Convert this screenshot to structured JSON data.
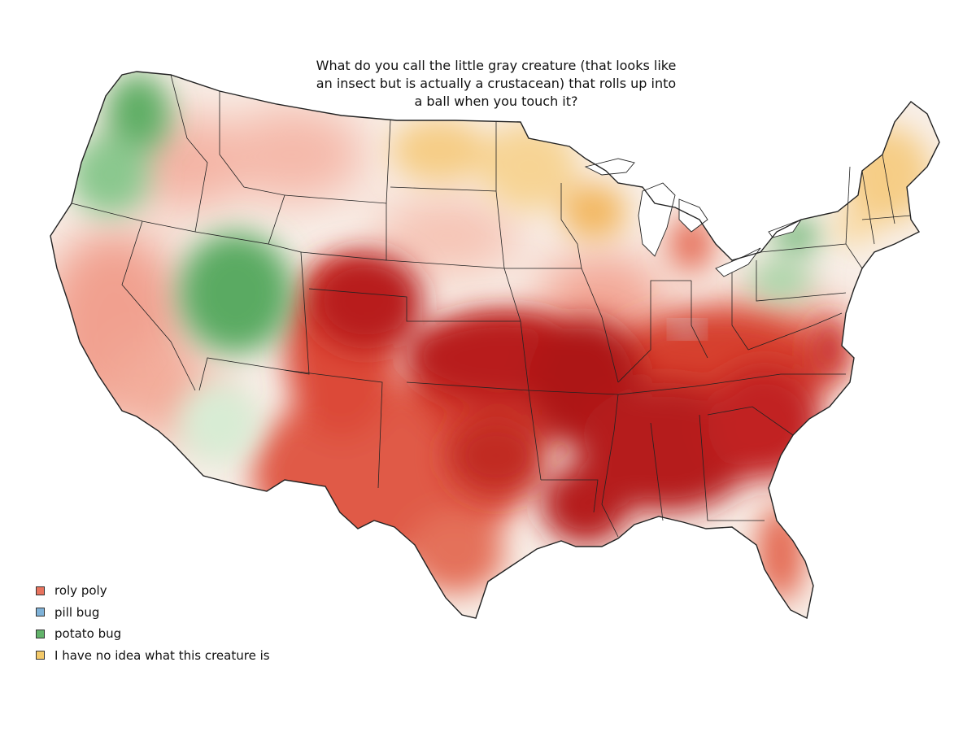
{
  "title": {
    "line1": "What do you call the little gray creature (that looks like",
    "line2": "an insect but is actually a crustacean) that rolls up into",
    "line3": "a ball when you touch it?"
  },
  "legend": [
    {
      "label": "roly poly",
      "color": "#e8735e"
    },
    {
      "label": "pill bug",
      "color": "#7fb2d8"
    },
    {
      "label": "potato bug",
      "color": "#62b36a"
    },
    {
      "label": "I have no idea what this creature is",
      "color": "#f3c969"
    }
  ],
  "colors": {
    "roly_poly_strong": "#b81a1a",
    "roly_poly_medium": "#de4a3a",
    "roly_poly_light": "#f3a08f",
    "potato_bug": "#5fae65",
    "no_idea": "#f6c978",
    "pill_bug": "#bcd3ea",
    "neutral": "#f7eee8",
    "border": "#222222"
  }
}
